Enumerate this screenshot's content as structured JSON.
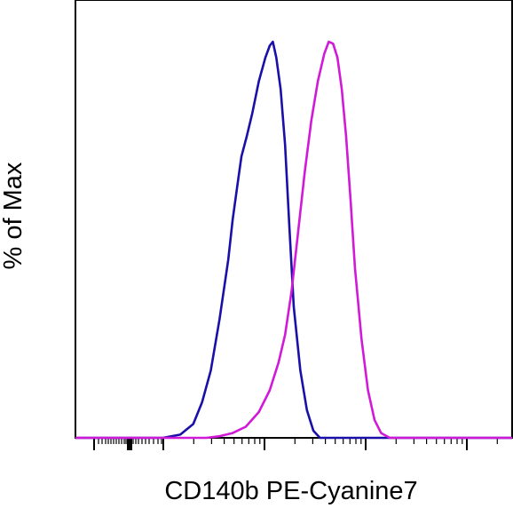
{
  "chart_data": {
    "type": "line",
    "chart_kind": "flow cytometry histogram overlay",
    "xlabel": "CD140b PE-Cyanine7",
    "ylabel": "% of Max",
    "x_scale": "biexponential (log)",
    "y_tick_labels": "none",
    "x_tick_labels": "none",
    "grid": false,
    "legend": "none",
    "series": [
      {
        "color": "#1a0fa8",
        "points": [
          [
            0.0,
            0.0
          ],
          [
            0.2,
            0.0
          ],
          [
            0.24,
            0.008
          ],
          [
            0.27,
            0.035
          ],
          [
            0.29,
            0.09
          ],
          [
            0.31,
            0.17
          ],
          [
            0.33,
            0.3
          ],
          [
            0.35,
            0.45
          ],
          [
            0.36,
            0.55
          ],
          [
            0.37,
            0.63
          ],
          [
            0.38,
            0.71
          ],
          [
            0.392,
            0.76
          ],
          [
            0.405,
            0.82
          ],
          [
            0.42,
            0.9
          ],
          [
            0.435,
            0.96
          ],
          [
            0.445,
            0.99
          ],
          [
            0.452,
            1.0
          ],
          [
            0.46,
            0.96
          ],
          [
            0.47,
            0.88
          ],
          [
            0.48,
            0.74
          ],
          [
            0.49,
            0.53
          ],
          [
            0.5,
            0.33
          ],
          [
            0.515,
            0.17
          ],
          [
            0.53,
            0.07
          ],
          [
            0.545,
            0.018
          ],
          [
            0.56,
            0.0
          ],
          [
            1.0,
            0.0
          ]
        ]
      },
      {
        "color": "#d01ad8",
        "points": [
          [
            0.0,
            0.0
          ],
          [
            0.3,
            0.0
          ],
          [
            0.33,
            0.004
          ],
          [
            0.36,
            0.012
          ],
          [
            0.39,
            0.028
          ],
          [
            0.42,
            0.065
          ],
          [
            0.445,
            0.12
          ],
          [
            0.465,
            0.19
          ],
          [
            0.48,
            0.26
          ],
          [
            0.495,
            0.37
          ],
          [
            0.51,
            0.52
          ],
          [
            0.525,
            0.67
          ],
          [
            0.54,
            0.8
          ],
          [
            0.555,
            0.9
          ],
          [
            0.57,
            0.97
          ],
          [
            0.58,
            1.0
          ],
          [
            0.59,
            0.995
          ],
          [
            0.6,
            0.96
          ],
          [
            0.61,
            0.88
          ],
          [
            0.62,
            0.76
          ],
          [
            0.63,
            0.6
          ],
          [
            0.64,
            0.43
          ],
          [
            0.655,
            0.25
          ],
          [
            0.67,
            0.12
          ],
          [
            0.685,
            0.045
          ],
          [
            0.7,
            0.012
          ],
          [
            0.72,
            0.0
          ],
          [
            1.0,
            0.0
          ]
        ]
      }
    ]
  }
}
